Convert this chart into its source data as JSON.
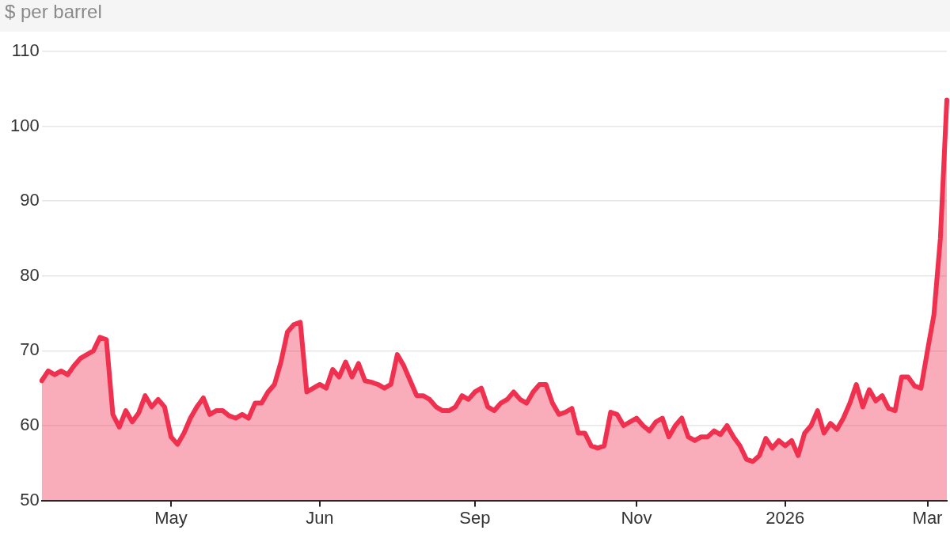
{
  "chart_data": {
    "type": "area",
    "ylabel": "$ per barrel",
    "categories": [
      null,
      null,
      null,
      null,
      null,
      null,
      null,
      null,
      null,
      null,
      null,
      null,
      null,
      null,
      null,
      null,
      null,
      null,
      null,
      null,
      "May",
      null,
      null,
      null,
      null,
      null,
      null,
      null,
      null,
      null,
      null,
      null,
      null,
      null,
      null,
      null,
      null,
      null,
      null,
      null,
      null,
      null,
      null,
      "Jun",
      null,
      null,
      null,
      null,
      null,
      null,
      null,
      null,
      null,
      null,
      null,
      null,
      null,
      null,
      null,
      null,
      null,
      null,
      null,
      null,
      null,
      null,
      null,
      "Sep",
      null,
      null,
      null,
      null,
      null,
      null,
      null,
      null,
      null,
      null,
      null,
      null,
      null,
      null,
      null,
      null,
      null,
      null,
      null,
      null,
      null,
      null,
      null,
      null,
      "Nov",
      null,
      null,
      null,
      null,
      null,
      null,
      null,
      null,
      null,
      null,
      null,
      null,
      null,
      null,
      null,
      null,
      null,
      null,
      null,
      null,
      null,
      null,
      "2026",
      null,
      null,
      null,
      null,
      null,
      null,
      null,
      null,
      null,
      null,
      null,
      null,
      null,
      null,
      null,
      null,
      null,
      null,
      null,
      null,
      null,
      "Mar",
      null,
      null,
      null
    ],
    "values": [
      66.0,
      67.3,
      66.8,
      67.3,
      66.8,
      68,
      69,
      69.5,
      70,
      71.8,
      71.5,
      61.5,
      59.8,
      62,
      60.5,
      61.7,
      64,
      62.5,
      63.5,
      62.5,
      58.5,
      57.5,
      59,
      61,
      62.5,
      63.7,
      61.5,
      62,
      62,
      61.3,
      61,
      61.5,
      61,
      63,
      63,
      64.5,
      65.5,
      68.5,
      72.5,
      73.5,
      73.8,
      64.5,
      65,
      65.5,
      65,
      67.5,
      66.5,
      68.5,
      66.5,
      68.3,
      66,
      65.8,
      65.5,
      65,
      65.5,
      69.5,
      68,
      66,
      64,
      64,
      63.5,
      62.5,
      62,
      62,
      62.5,
      64,
      63.5,
      64.5,
      65,
      62.5,
      62,
      63,
      63.5,
      64.5,
      63.5,
      63,
      64.5,
      65.5,
      65.5,
      63,
      61.5,
      61.8,
      62.3,
      59,
      59,
      57.3,
      57,
      57.3,
      61.8,
      61.5,
      60,
      60.5,
      61,
      60,
      59.3,
      60.5,
      61,
      58.5,
      60,
      61,
      58.5,
      58,
      58.5,
      58.5,
      59.3,
      58.8,
      60,
      58.5,
      57.3,
      55.5,
      55.2,
      56,
      58.3,
      57,
      58,
      57.3,
      58,
      56,
      59,
      60,
      62,
      59,
      60.3,
      59.5,
      61,
      63,
      65.5,
      62.5,
      64.8,
      63.3,
      64,
      62.3,
      62,
      66.5,
      66.5,
      65.3,
      65,
      70,
      74.8,
      85,
      103.5
    ],
    "color": "#f0304f",
    "ylim": [
      50,
      110
    ],
    "yticks": [
      50,
      60,
      70,
      80,
      90,
      100,
      110
    ],
    "grid": "y",
    "marker": "none",
    "line_style": "solid"
  }
}
